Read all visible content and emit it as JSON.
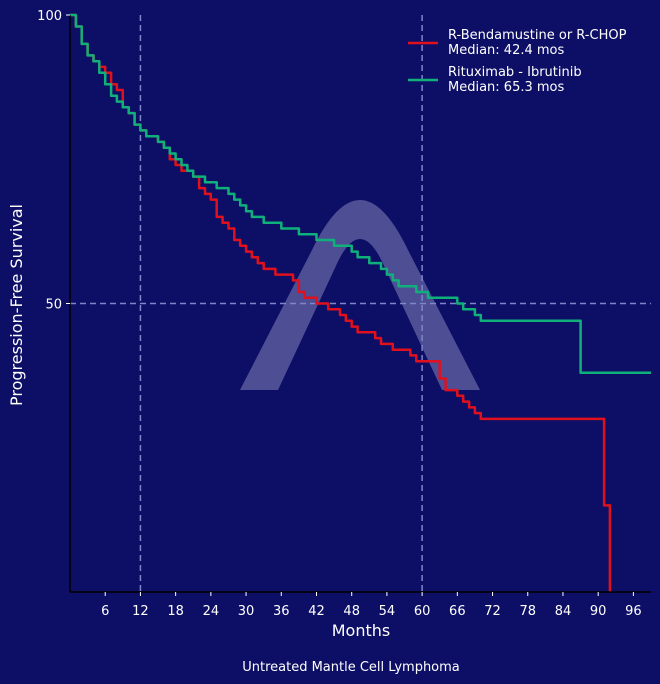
{
  "caption": "Untreated Mantle Cell Lymphoma",
  "colors": {
    "background": "#0d0f66",
    "reference": "#7f86c8",
    "watermark": "#6a6aa8"
  },
  "watermark": {
    "icon": "caret-arch-logo"
  },
  "chart_data": {
    "type": "line",
    "xlabel": "Months",
    "ylabel": "Progression-Free Survival",
    "xlim": [
      0,
      99
    ],
    "ylim": [
      0,
      100
    ],
    "xticks": [
      6,
      12,
      18,
      24,
      30,
      36,
      42,
      48,
      54,
      60,
      66,
      72,
      78,
      84,
      90,
      96
    ],
    "yticks": [
      50,
      100
    ],
    "reference_lines": {
      "x": [
        12,
        60
      ],
      "y": [
        50
      ]
    },
    "grid": false,
    "legend_position": "top-right",
    "series": [
      {
        "name": "R-Bendamustine or R-CHOP",
        "median_label": "Median: 42.4 mos",
        "color": "#e0101c",
        "step": true,
        "x": [
          0,
          1,
          2,
          3,
          4,
          5,
          6,
          7,
          8,
          9,
          10,
          11,
          12,
          13,
          14,
          15,
          16,
          17,
          18,
          19,
          20,
          21,
          22,
          23,
          24,
          25,
          26,
          27,
          28,
          29,
          30,
          31,
          32,
          33,
          34,
          35,
          36,
          37,
          38,
          39,
          40,
          41,
          42,
          43,
          44,
          45,
          46,
          47,
          48,
          49,
          50,
          51,
          52,
          53,
          54,
          55,
          56,
          57,
          58,
          59,
          60,
          61,
          62,
          63,
          64,
          65,
          66,
          67,
          68,
          69,
          70,
          75,
          80,
          85,
          90,
          91,
          92
        ],
        "y": [
          100,
          98,
          95,
          93,
          92,
          91,
          90,
          88,
          87,
          84,
          83,
          81,
          80,
          79,
          79,
          78,
          77,
          75,
          74,
          73,
          73,
          72,
          70,
          69,
          68,
          65,
          64,
          63,
          61,
          60,
          59,
          58,
          57,
          56,
          56,
          55,
          55,
          55,
          54,
          52,
          51,
          51,
          50,
          50,
          49,
          49,
          48,
          47,
          46,
          45,
          45,
          45,
          44,
          43,
          43,
          42,
          42,
          42,
          41,
          40,
          40,
          40,
          40,
          37,
          35,
          35,
          34,
          33,
          32,
          31,
          30,
          30,
          30,
          30,
          30,
          15,
          0
        ]
      },
      {
        "name": "Rituximab - Ibrutinib",
        "median_label": "Median: 65.3 mos",
        "color": "#10b07a",
        "step": true,
        "x": [
          0,
          1,
          2,
          3,
          4,
          5,
          6,
          7,
          8,
          9,
          10,
          11,
          12,
          13,
          14,
          15,
          16,
          17,
          18,
          19,
          20,
          21,
          22,
          23,
          24,
          25,
          26,
          27,
          28,
          29,
          30,
          31,
          32,
          33,
          34,
          35,
          36,
          37,
          38,
          39,
          40,
          41,
          42,
          43,
          44,
          45,
          46,
          47,
          48,
          49,
          50,
          51,
          52,
          53,
          54,
          55,
          56,
          57,
          58,
          59,
          60,
          61,
          62,
          63,
          64,
          65,
          66,
          67,
          68,
          69,
          70,
          75,
          80,
          85,
          86,
          87,
          90,
          95,
          99
        ],
        "y": [
          100,
          98,
          95,
          93,
          92,
          90,
          88,
          86,
          85,
          84,
          83,
          81,
          80,
          79,
          79,
          78,
          77,
          76,
          75,
          74,
          73,
          72,
          72,
          71,
          71,
          70,
          70,
          69,
          68,
          67,
          66,
          65,
          65,
          64,
          64,
          64,
          63,
          63,
          63,
          62,
          62,
          62,
          61,
          61,
          61,
          60,
          60,
          60,
          59,
          58,
          58,
          57,
          57,
          56,
          55,
          54,
          53,
          53,
          53,
          52,
          52,
          51,
          51,
          51,
          51,
          51,
          50,
          49,
          49,
          48,
          47,
          47,
          47,
          47,
          47,
          38,
          38,
          38,
          38
        ]
      }
    ]
  }
}
